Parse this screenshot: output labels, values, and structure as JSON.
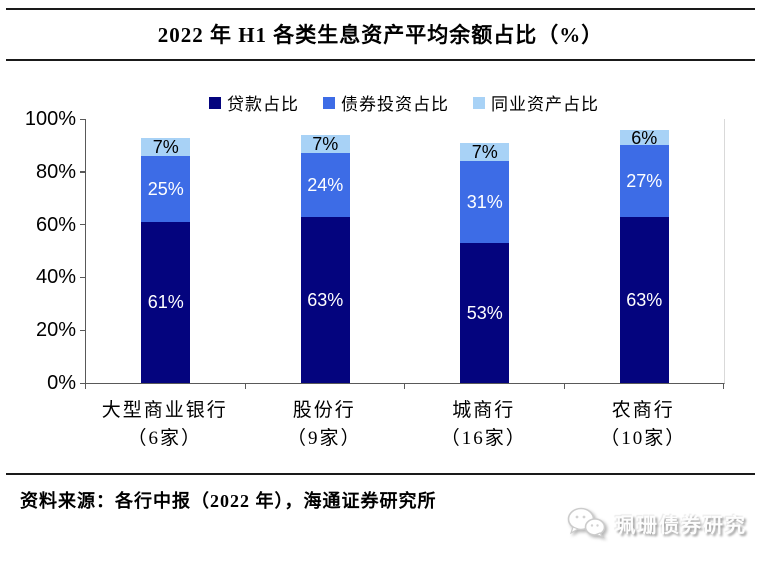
{
  "title": "2022 年 H1 各类生息资产平均余额占比（%）",
  "source_note": "资料来源：各行中报（2022 年），海通证券研究所",
  "watermark": {
    "label": "珮珊债券研究",
    "icon": "wechat-chat-bubbles-icon"
  },
  "chart_data": {
    "type": "bar",
    "stacked": true,
    "title": "2022 年 H1 各类生息资产平均余额占比（%）",
    "categories": [
      "大型商业银行",
      "股份行",
      "城商行",
      "农商行"
    ],
    "category_sublabels": [
      "（6家）",
      "（9家）",
      "（16家）",
      "（10家）"
    ],
    "series": [
      {
        "name": "贷款占比",
        "color": "#04047e",
        "label_color": "#000000",
        "label_text_color": "#ffffff",
        "values": [
          61,
          63,
          53,
          63
        ]
      },
      {
        "name": "债券投资占比",
        "color": "#3d6ce6",
        "label_color": "#ffffff",
        "label_text_color": "#ffffff",
        "values": [
          25,
          24,
          31,
          27
        ]
      },
      {
        "name": "同业资产占比",
        "color": "#a8d2f6",
        "label_color": "#000000",
        "label_text_color": "#000000",
        "values": [
          7,
          7,
          7,
          6
        ]
      }
    ],
    "ylim": [
      0,
      100
    ],
    "yticks": [
      0,
      20,
      40,
      60,
      80,
      100
    ],
    "ytick_suffix": "%",
    "value_suffix": "%",
    "legend_position": "top",
    "grid": false
  }
}
